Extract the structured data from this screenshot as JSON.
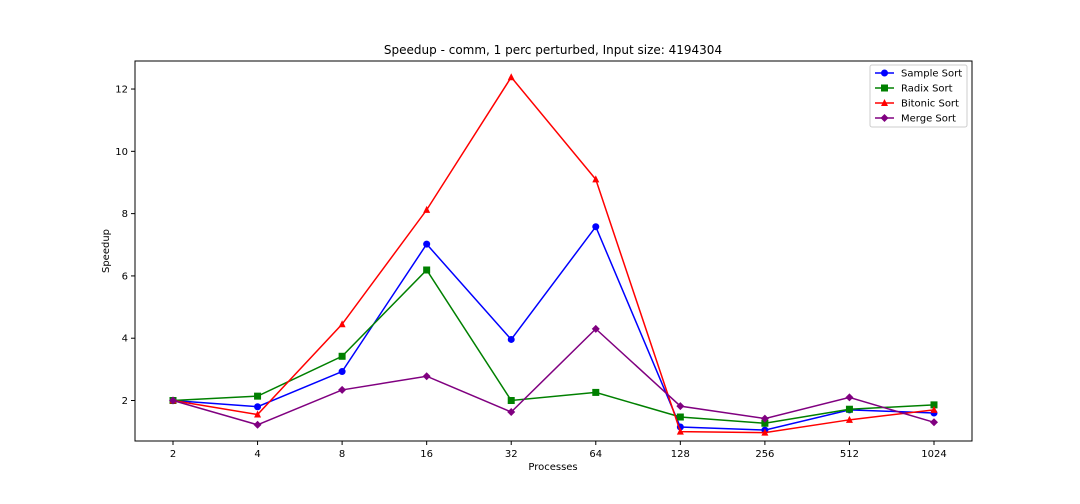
{
  "chart_data": {
    "type": "line",
    "title": "Speedup - comm, 1 perc perturbed, Input size: 4194304",
    "xlabel": "Processes",
    "ylabel": "Speedup",
    "categories": [
      "2",
      "4",
      "8",
      "16",
      "32",
      "64",
      "128",
      "256",
      "512",
      "1024"
    ],
    "yticks": [
      2,
      4,
      6,
      8,
      10,
      12
    ],
    "ylim": [
      0.7,
      12.9
    ],
    "grid": false,
    "legend_position": "top-right",
    "series": [
      {
        "name": "Sample Sort",
        "color": "#0000ff",
        "marker": "circle",
        "values": [
          2.0,
          1.8,
          2.93,
          7.02,
          3.96,
          7.58,
          1.15,
          1.05,
          1.7,
          1.6
        ]
      },
      {
        "name": "Radix Sort",
        "color": "#008000",
        "marker": "square",
        "values": [
          2.0,
          2.14,
          3.42,
          6.19,
          2.0,
          2.26,
          1.47,
          1.27,
          1.72,
          1.86
        ]
      },
      {
        "name": "Bitonic Sort",
        "color": "#ff0000",
        "marker": "triangle",
        "values": [
          2.0,
          1.55,
          4.45,
          8.12,
          12.38,
          9.1,
          1.0,
          0.97,
          1.38,
          1.7
        ]
      },
      {
        "name": "Merge Sort",
        "color": "#800080",
        "marker": "diamond",
        "values": [
          2.0,
          1.22,
          2.34,
          2.78,
          1.63,
          4.3,
          1.82,
          1.42,
          2.1,
          1.3
        ]
      }
    ]
  }
}
